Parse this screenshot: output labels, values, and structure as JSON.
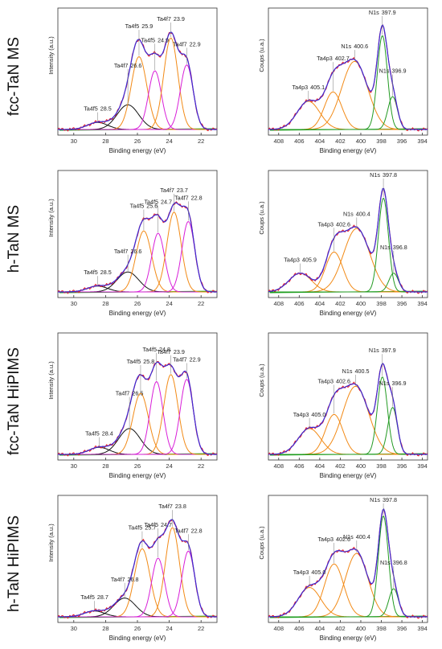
{
  "colors": {
    "envelope": "#3b2bd6",
    "experimental": "#e8232b",
    "background": "#1aa21a",
    "ta_peak": "#f28a16",
    "ta_magenta": "#d81ed8",
    "ta_black": "#111111",
    "ta_orange": "#f28a16",
    "n_orange": "#f28a16",
    "n_green": "#229a22"
  },
  "row_labels": [
    "fcc-TaN MS",
    "h-TaN MS",
    "fcc-TaN HiPIMS",
    "h-TaN HiPIMS"
  ],
  "ta_panel": {
    "xlabel": "Binding energy (eV)",
    "ylabel": "Intensity (a.u.)",
    "x_ticks": [
      "30",
      "28",
      "26",
      "24",
      "22"
    ]
  },
  "n_panel": {
    "xlabel": "Binding energy (eV)",
    "ylabel": "Coups (u.a.)",
    "x_ticks": [
      "408",
      "406",
      "404",
      "402",
      "400",
      "398",
      "396",
      "394"
    ]
  },
  "chart_data": [
    {
      "type": "line",
      "sample": "fcc-TaN MS",
      "region": "Ta 4f",
      "xlim": [
        31,
        21
      ],
      "invert_x": true,
      "peaks": [
        {
          "label": "Ta4f5",
          "value": "28.5",
          "x": 28.5,
          "height": 0.06,
          "width": 1.5,
          "color": "ta_black"
        },
        {
          "label": "Ta4f7",
          "value": "26.6",
          "x": 26.6,
          "height": 0.21,
          "width": 1.6,
          "color": "ta_black"
        },
        {
          "label": "Ta4f5",
          "value": "25.9",
          "x": 25.9,
          "height": 0.62,
          "width": 1.15,
          "color": "ta_orange"
        },
        {
          "label": "Ta4f5",
          "value": "24.9",
          "x": 24.9,
          "height": 0.5,
          "width": 0.95,
          "color": "ta_magenta"
        },
        {
          "label": "Ta4f7",
          "value": "23.9",
          "x": 23.9,
          "height": 0.78,
          "width": 1.05,
          "color": "ta_orange"
        },
        {
          "label": "Ta4f7",
          "value": "22.9",
          "x": 22.9,
          "height": 0.55,
          "width": 0.95,
          "color": "ta_magenta"
        }
      ]
    },
    {
      "type": "line",
      "sample": "fcc-TaN MS",
      "region": "N 1s",
      "xlim": [
        409,
        393.5
      ],
      "invert_x": true,
      "peaks": [
        {
          "label": "Ta4p3",
          "value": "405.1",
          "x": 405.1,
          "height": 0.24,
          "width": 2.6,
          "color": "n_orange"
        },
        {
          "label": "Ta4p3",
          "value": "402.7",
          "x": 402.7,
          "height": 0.32,
          "width": 2.0,
          "color": "n_orange"
        },
        {
          "label": "N1s",
          "value": "400.6",
          "x": 400.6,
          "height": 0.58,
          "width": 3.0,
          "color": "n_orange"
        },
        {
          "label": "N1s",
          "value": "397.9",
          "x": 397.9,
          "height": 0.8,
          "width": 1.15,
          "color": "n_green"
        },
        {
          "label": "N1s",
          "value": "396.9",
          "x": 396.9,
          "height": 0.28,
          "width": 1.1,
          "color": "n_green"
        }
      ]
    },
    {
      "type": "line",
      "sample": "h-TaN MS",
      "region": "Ta 4f",
      "xlim": [
        31,
        21
      ],
      "invert_x": true,
      "peaks": [
        {
          "label": "Ta4f5",
          "value": "28.5",
          "x": 28.5,
          "height": 0.05,
          "width": 1.5,
          "color": "ta_black"
        },
        {
          "label": "Ta4f7",
          "value": "26.6",
          "x": 26.6,
          "height": 0.17,
          "width": 1.6,
          "color": "ta_black"
        },
        {
          "label": "Ta4f5",
          "value": "25.6",
          "x": 25.6,
          "height": 0.52,
          "width": 1.15,
          "color": "ta_orange"
        },
        {
          "label": "Ta4f5",
          "value": "24.7",
          "x": 24.7,
          "height": 0.5,
          "width": 0.95,
          "color": "ta_magenta"
        },
        {
          "label": "Ta4f7",
          "value": "23.7",
          "x": 23.7,
          "height": 0.68,
          "width": 1.05,
          "color": "ta_orange"
        },
        {
          "label": "Ta4f7",
          "value": "22.8",
          "x": 22.8,
          "height": 0.6,
          "width": 0.95,
          "color": "ta_magenta"
        }
      ]
    },
    {
      "type": "line",
      "sample": "h-TaN MS",
      "region": "N 1s",
      "xlim": [
        409,
        393.5
      ],
      "invert_x": true,
      "peaks": [
        {
          "label": "Ta4p3",
          "value": "405.9",
          "x": 405.9,
          "height": 0.16,
          "width": 2.6,
          "color": "n_orange"
        },
        {
          "label": "Ta4p3",
          "value": "402.6",
          "x": 402.6,
          "height": 0.34,
          "width": 2.0,
          "color": "n_orange"
        },
        {
          "label": "N1s",
          "value": "400.4",
          "x": 400.4,
          "height": 0.54,
          "width": 3.0,
          "color": "n_orange"
        },
        {
          "label": "N1s",
          "value": "397.8",
          "x": 397.8,
          "height": 0.8,
          "width": 1.15,
          "color": "n_green"
        },
        {
          "label": "N1s",
          "value": "396.8",
          "x": 396.8,
          "height": 0.16,
          "width": 1.1,
          "color": "n_green"
        }
      ]
    },
    {
      "type": "line",
      "sample": "fcc-TaN HiPIMS",
      "region": "Ta 4f",
      "xlim": [
        31,
        21
      ],
      "invert_x": true,
      "peaks": [
        {
          "label": "Ta4f5",
          "value": "28.4",
          "x": 28.4,
          "height": 0.06,
          "width": 1.5,
          "color": "ta_black"
        },
        {
          "label": "Ta4f7",
          "value": "26.5",
          "x": 26.5,
          "height": 0.22,
          "width": 1.6,
          "color": "ta_black"
        },
        {
          "label": "Ta4f5",
          "value": "25.8",
          "x": 25.8,
          "height": 0.52,
          "width": 1.15,
          "color": "ta_orange"
        },
        {
          "label": "Ta4f5",
          "value": "24.8",
          "x": 24.8,
          "height": 0.62,
          "width": 0.95,
          "color": "ta_magenta"
        },
        {
          "label": "Ta4f7",
          "value": "23.9",
          "x": 23.9,
          "height": 0.68,
          "width": 1.05,
          "color": "ta_orange"
        },
        {
          "label": "Ta4f7",
          "value": "22.9",
          "x": 22.9,
          "height": 0.64,
          "width": 0.95,
          "color": "ta_magenta"
        }
      ]
    },
    {
      "type": "line",
      "sample": "fcc-TaN HiPIMS",
      "region": "N 1s",
      "xlim": [
        409,
        393.5
      ],
      "invert_x": true,
      "peaks": [
        {
          "label": "Ta4p3",
          "value": "405.0",
          "x": 405.0,
          "height": 0.22,
          "width": 2.6,
          "color": "n_orange"
        },
        {
          "label": "Ta4p3",
          "value": "402.6",
          "x": 402.6,
          "height": 0.34,
          "width": 2.0,
          "color": "n_orange"
        },
        {
          "label": "N1s",
          "value": "400.5",
          "x": 400.5,
          "height": 0.58,
          "width": 3.0,
          "color": "n_orange"
        },
        {
          "label": "N1s",
          "value": "397.9",
          "x": 397.9,
          "height": 0.66,
          "width": 1.15,
          "color": "n_green"
        },
        {
          "label": "N1s",
          "value": "396.9",
          "x": 396.9,
          "height": 0.4,
          "width": 1.1,
          "color": "n_green"
        }
      ]
    },
    {
      "type": "line",
      "sample": "h-TaN HiPIMS",
      "region": "Ta 4f",
      "xlim": [
        31,
        21
      ],
      "invert_x": true,
      "peaks": [
        {
          "label": "Ta4f5",
          "value": "28.7",
          "x": 28.7,
          "height": 0.05,
          "width": 1.5,
          "color": "ta_black"
        },
        {
          "label": "Ta4f7",
          "value": "26.8",
          "x": 26.8,
          "height": 0.16,
          "width": 1.6,
          "color": "ta_black"
        },
        {
          "label": "Ta4f5",
          "value": "25.7",
          "x": 25.7,
          "height": 0.58,
          "width": 1.15,
          "color": "ta_orange"
        },
        {
          "label": "Ta4f5",
          "value": "24.7",
          "x": 24.7,
          "height": 0.5,
          "width": 0.95,
          "color": "ta_magenta"
        },
        {
          "label": "Ta4f7",
          "value": "23.8",
          "x": 23.8,
          "height": 0.76,
          "width": 1.05,
          "color": "ta_orange"
        },
        {
          "label": "Ta4f7",
          "value": "22.8",
          "x": 22.8,
          "height": 0.56,
          "width": 0.95,
          "color": "ta_magenta"
        }
      ]
    },
    {
      "type": "line",
      "sample": "h-TaN HiPIMS",
      "region": "N 1s",
      "xlim": [
        409,
        393.5
      ],
      "invert_x": true,
      "peaks": [
        {
          "label": "Ta4p3",
          "value": "405.0",
          "x": 405.0,
          "height": 0.25,
          "width": 2.6,
          "color": "n_orange"
        },
        {
          "label": "Ta4p3",
          "value": "402.6",
          "x": 402.6,
          "height": 0.45,
          "width": 2.2,
          "color": "n_orange"
        },
        {
          "label": "N1s",
          "value": "400.4",
          "x": 400.4,
          "height": 0.54,
          "width": 2.6,
          "color": "n_orange"
        },
        {
          "label": "N1s",
          "value": "397.8",
          "x": 397.8,
          "height": 0.86,
          "width": 1.15,
          "color": "n_green"
        },
        {
          "label": "N1s",
          "value": "396.8",
          "x": 396.8,
          "height": 0.24,
          "width": 1.1,
          "color": "n_green"
        }
      ]
    }
  ]
}
